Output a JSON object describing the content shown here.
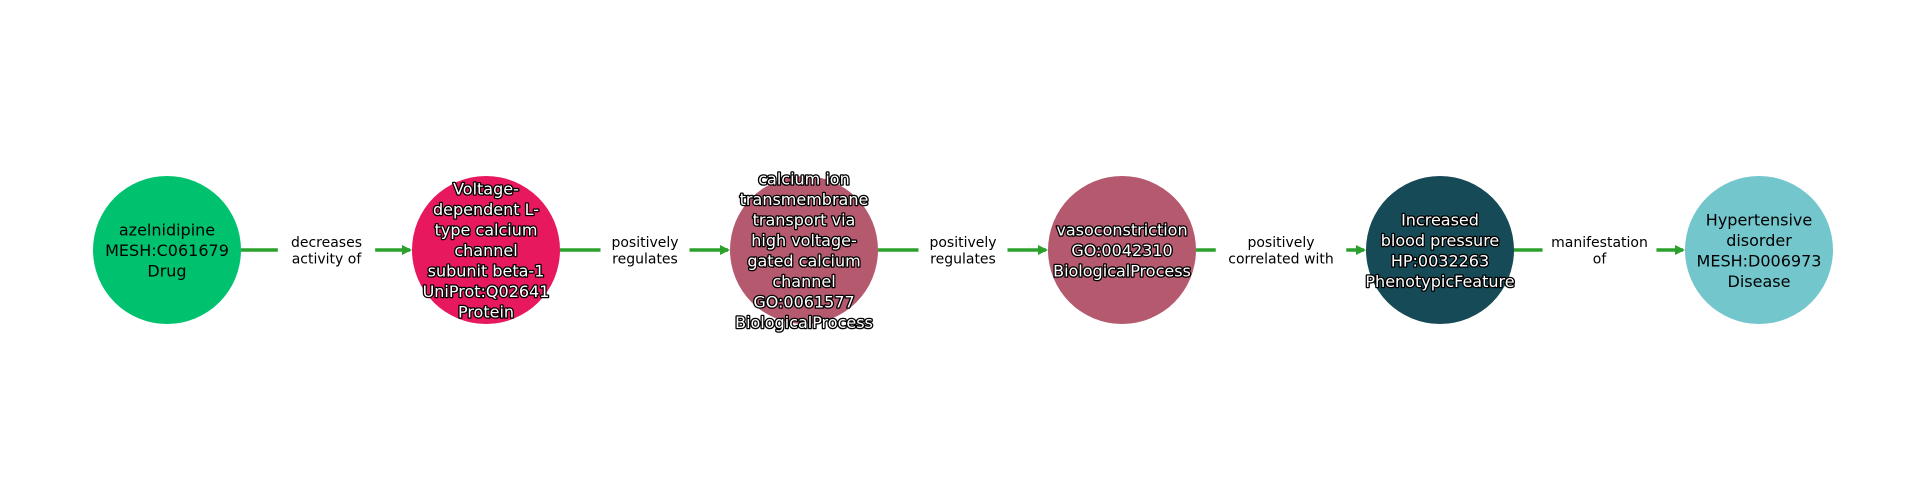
{
  "colors": {
    "edge": "#2ca02c",
    "label_bg": "#ffffff"
  },
  "nodes": [
    {
      "lines": [
        "azelnidipine",
        "MESH:C061679",
        "Drug"
      ],
      "color": "#00c26e",
      "text_style": "dark"
    },
    {
      "lines": [
        "Voltage-",
        "dependent L-",
        "type calcium",
        "channel",
        "subunit beta-1",
        "UniProt:Q02641",
        "Protein"
      ],
      "color": "#e8185f",
      "text_style": "light"
    },
    {
      "lines": [
        "calcium ion",
        "transmembrane",
        "transport via",
        "high voltage-",
        "gated calcium",
        "channel",
        "GO:0061577",
        "BiologicalProcess"
      ],
      "color": "#b5596e",
      "text_style": "light"
    },
    {
      "lines": [
        "vasoconstriction",
        "GO:0042310",
        "BiologicalProcess"
      ],
      "color": "#b5596e",
      "text_style": "light"
    },
    {
      "lines": [
        "Increased",
        "blood pressure",
        "HP:0032263",
        "PhenotypicFeature"
      ],
      "color": "#164a56",
      "text_style": "light"
    },
    {
      "lines": [
        "Hypertensive",
        "disorder",
        "MESH:D006973",
        "Disease"
      ],
      "color": "#72c6cc",
      "text_style": "dark"
    }
  ],
  "edges": [
    {
      "from": 0,
      "to": 1,
      "lines": [
        "decreases",
        "activity of"
      ]
    },
    {
      "from": 1,
      "to": 2,
      "lines": [
        "positively",
        "regulates"
      ]
    },
    {
      "from": 2,
      "to": 3,
      "lines": [
        "positively",
        "regulates"
      ]
    },
    {
      "from": 3,
      "to": 4,
      "lines": [
        "positively",
        "correlated with"
      ]
    },
    {
      "from": 4,
      "to": 5,
      "lines": [
        "manifestation",
        "of"
      ]
    }
  ]
}
